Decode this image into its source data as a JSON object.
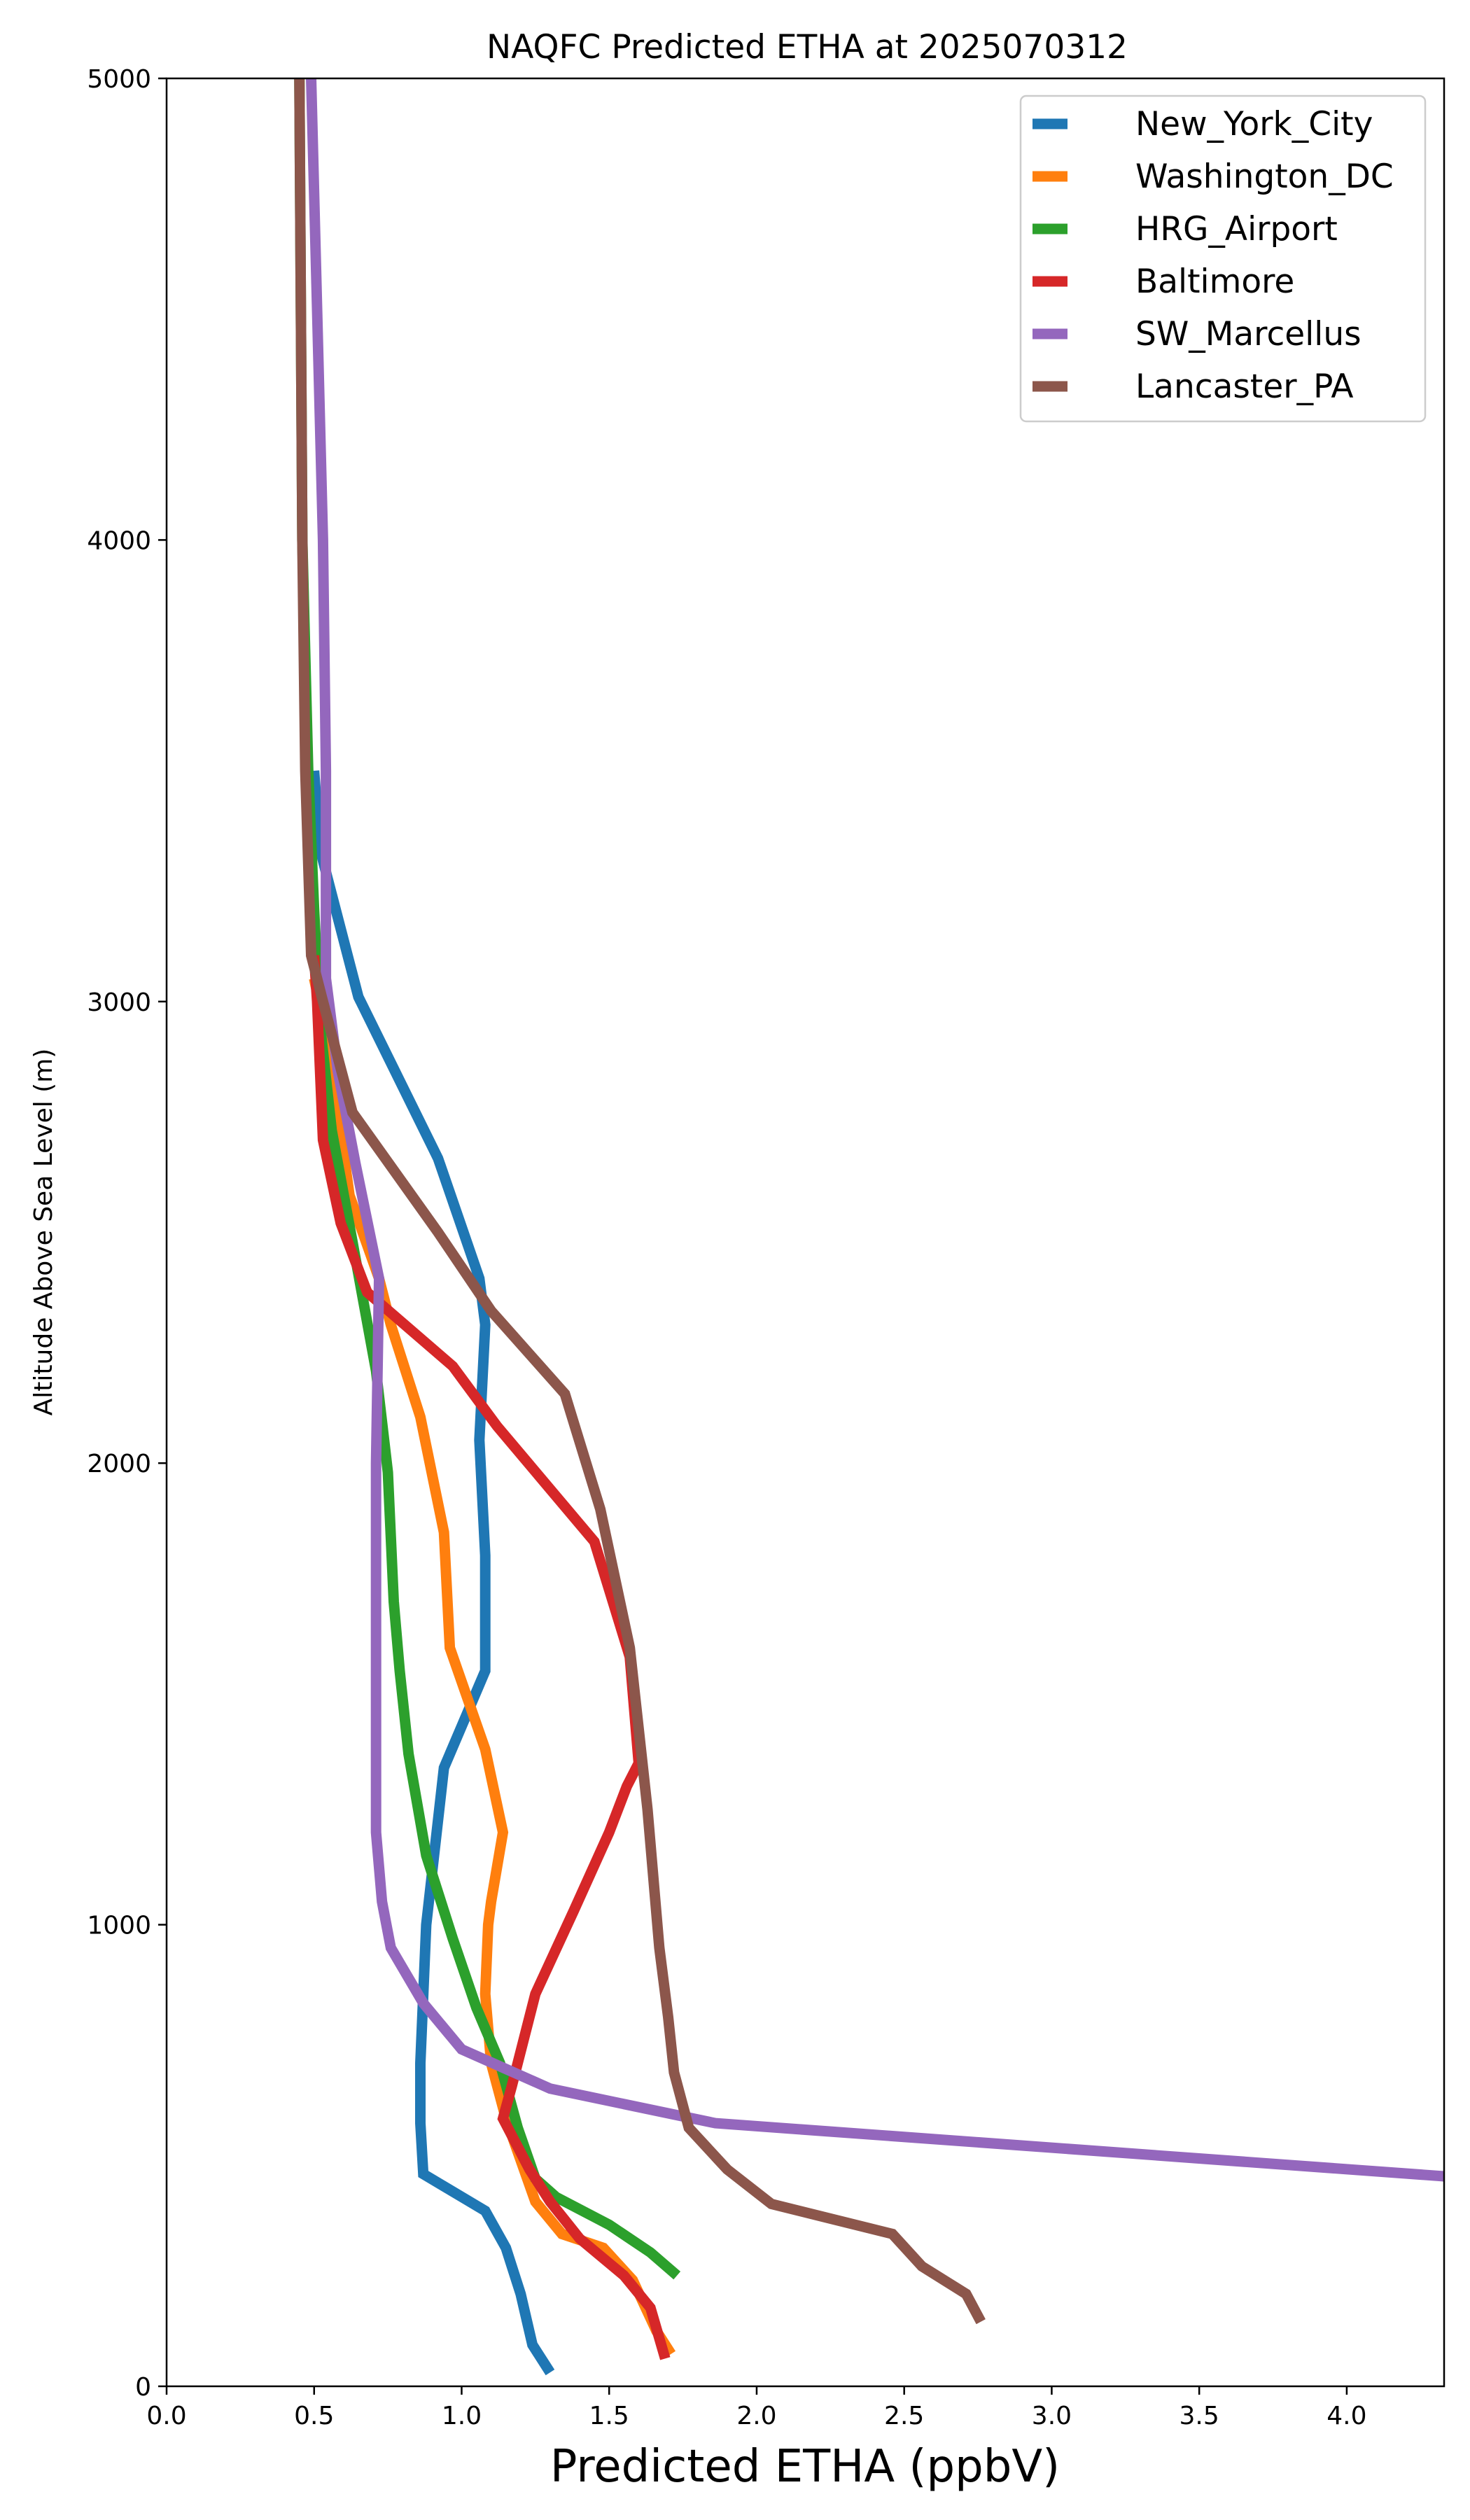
{
  "chart_data": {
    "type": "line",
    "title": "NAQFC Predicted ETHA at 2025070312",
    "xlabel": "Predicted ETHA (ppbV)",
    "ylabel": "Altitude Above Sea Level (m)",
    "xlim": [
      0.0,
      4.33
    ],
    "ylim": [
      0,
      5000
    ],
    "xticks": [
      "0.0",
      "0.5",
      "1.0",
      "1.5",
      "2.0",
      "2.5",
      "3.0",
      "3.5",
      "4.0"
    ],
    "yticks": [
      "0",
      "1000",
      "2000",
      "3000",
      "4000",
      "5000"
    ],
    "grid": false,
    "legend_position": "top-right",
    "series": [
      {
        "name": "New_York_City",
        "color": "#1f77b4",
        "points": [
          [
            1.3,
            30
          ],
          [
            1.24,
            90
          ],
          [
            1.2,
            200
          ],
          [
            1.15,
            300
          ],
          [
            1.08,
            380
          ],
          [
            0.87,
            460
          ],
          [
            0.86,
            570
          ],
          [
            0.86,
            700
          ],
          [
            0.87,
            850
          ],
          [
            0.88,
            1000
          ],
          [
            0.94,
            1340
          ],
          [
            1.0,
            1430
          ],
          [
            1.08,
            1550
          ],
          [
            1.08,
            1700
          ],
          [
            1.08,
            1800
          ],
          [
            1.06,
            2050
          ],
          [
            1.08,
            2300
          ],
          [
            1.06,
            2400
          ],
          [
            0.92,
            2660
          ],
          [
            0.65,
            3010
          ],
          [
            0.52,
            3330
          ],
          [
            0.5,
            3500
          ]
        ]
      },
      {
        "name": "Washington_DC",
        "color": "#ff7f0e",
        "points": [
          [
            1.71,
            70
          ],
          [
            1.66,
            120
          ],
          [
            1.58,
            230
          ],
          [
            1.48,
            300
          ],
          [
            1.34,
            330
          ],
          [
            1.25,
            400
          ],
          [
            1.15,
            580
          ],
          [
            1.1,
            700
          ],
          [
            1.08,
            850
          ],
          [
            1.09,
            1000
          ],
          [
            1.1,
            1050
          ],
          [
            1.14,
            1200
          ],
          [
            1.08,
            1380
          ],
          [
            0.96,
            1600
          ],
          [
            0.94,
            1850
          ],
          [
            0.86,
            2100
          ],
          [
            0.76,
            2300
          ],
          [
            0.72,
            2400
          ],
          [
            0.62,
            2580
          ],
          [
            0.55,
            2900
          ],
          [
            0.5,
            3050
          ]
        ]
      },
      {
        "name": "HRG_Airport",
        "color": "#2ca02c",
        "points": [
          [
            1.73,
            240
          ],
          [
            1.64,
            290
          ],
          [
            1.5,
            350
          ],
          [
            1.32,
            410
          ],
          [
            1.25,
            450
          ],
          [
            1.19,
            560
          ],
          [
            1.13,
            700
          ],
          [
            1.05,
            820
          ],
          [
            0.97,
            970
          ],
          [
            0.88,
            1150
          ],
          [
            0.82,
            1370
          ],
          [
            0.79,
            1550
          ],
          [
            0.77,
            1700
          ],
          [
            0.75,
            1980
          ],
          [
            0.71,
            2200
          ],
          [
            0.63,
            2480
          ],
          [
            0.56,
            2720
          ],
          [
            0.52,
            2950
          ],
          [
            0.5,
            3200
          ],
          [
            0.48,
            3500
          ],
          [
            0.46,
            4000
          ],
          [
            0.45,
            5000
          ]
        ]
      },
      {
        "name": "Baltimore",
        "color": "#d62728",
        "points": [
          [
            1.69,
            60
          ],
          [
            1.64,
            170
          ],
          [
            1.55,
            240
          ],
          [
            1.4,
            320
          ],
          [
            1.3,
            400
          ],
          [
            1.23,
            470
          ],
          [
            1.14,
            580
          ],
          [
            1.17,
            650
          ],
          [
            1.25,
            850
          ],
          [
            1.38,
            1030
          ],
          [
            1.5,
            1200
          ],
          [
            1.56,
            1300
          ],
          [
            1.6,
            1350
          ],
          [
            1.57,
            1580
          ],
          [
            1.45,
            1830
          ],
          [
            1.12,
            2080
          ],
          [
            0.97,
            2210
          ],
          [
            0.68,
            2370
          ],
          [
            0.59,
            2520
          ],
          [
            0.53,
            2700
          ],
          [
            0.51,
            3000
          ],
          [
            0.5,
            3100
          ]
        ]
      },
      {
        "name": "SW_Marcellus",
        "color": "#9467bd",
        "points": [
          [
            4.33,
            455
          ],
          [
            1.86,
            570
          ],
          [
            1.3,
            645
          ],
          [
            1.0,
            730
          ],
          [
            0.87,
            830
          ],
          [
            0.76,
            950
          ],
          [
            0.73,
            1050
          ],
          [
            0.71,
            1200
          ],
          [
            0.71,
            1300
          ],
          [
            0.71,
            1800
          ],
          [
            0.71,
            2000
          ],
          [
            0.72,
            2400
          ],
          [
            0.64,
            2650
          ],
          [
            0.58,
            2850
          ],
          [
            0.54,
            3050
          ],
          [
            0.54,
            3200
          ],
          [
            0.54,
            3500
          ],
          [
            0.53,
            4000
          ],
          [
            0.51,
            4500
          ],
          [
            0.49,
            5000
          ]
        ]
      },
      {
        "name": "Lancaster_PA",
        "color": "#8c564b",
        "points": [
          [
            2.76,
            140
          ],
          [
            2.71,
            200
          ],
          [
            2.56,
            260
          ],
          [
            2.46,
            330
          ],
          [
            2.05,
            395
          ],
          [
            1.9,
            470
          ],
          [
            1.77,
            560
          ],
          [
            1.72,
            680
          ],
          [
            1.7,
            800
          ],
          [
            1.67,
            950
          ],
          [
            1.63,
            1250
          ],
          [
            1.57,
            1600
          ],
          [
            1.47,
            1900
          ],
          [
            1.35,
            2150
          ],
          [
            1.1,
            2330
          ],
          [
            0.92,
            2500
          ],
          [
            0.63,
            2760
          ],
          [
            0.53,
            3000
          ],
          [
            0.49,
            3100
          ],
          [
            0.47,
            3500
          ],
          [
            0.46,
            4000
          ],
          [
            0.45,
            5000
          ]
        ]
      }
    ]
  }
}
